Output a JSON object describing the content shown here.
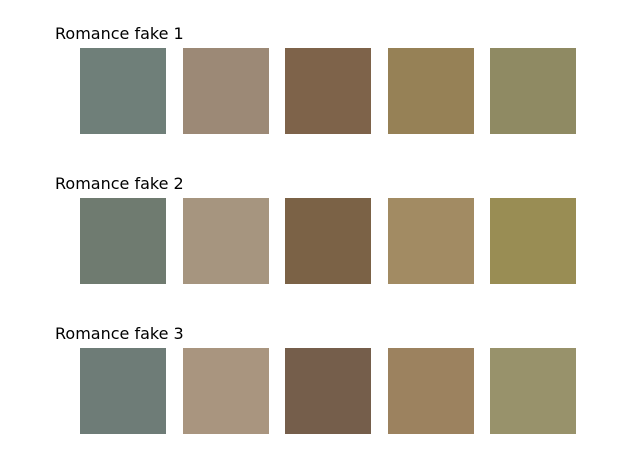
{
  "palettes": [
    {
      "title": "Romance fake 1",
      "swatches": [
        "#6f7f79",
        "#9c8976",
        "#7e634a",
        "#968156",
        "#8f8a63"
      ]
    },
    {
      "title": "Romance fake 2",
      "swatches": [
        "#6f7b70",
        "#a6957f",
        "#7b6246",
        "#a28b63",
        "#998d54"
      ]
    },
    {
      "title": "Romance fake 3",
      "swatches": [
        "#6e7c77",
        "#a9957f",
        "#755e4b",
        "#9c825f",
        "#98926b"
      ]
    }
  ]
}
